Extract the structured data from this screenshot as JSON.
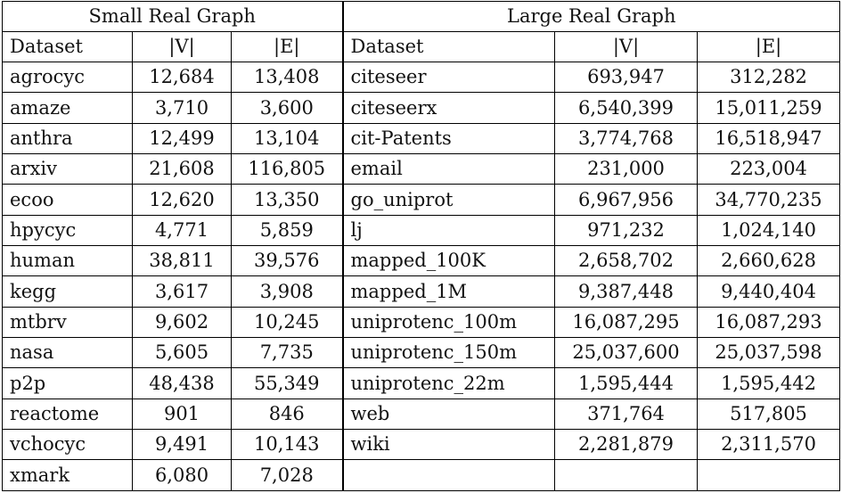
{
  "groups": {
    "small": "Small Real Graph",
    "large": "Large Real Graph"
  },
  "headers": {
    "dataset": "Dataset",
    "v": "|V|",
    "e": "|E|"
  },
  "rows": [
    {
      "s_name": "agrocyc",
      "s_v": "12,684",
      "s_e": "13,408",
      "l_name": "citeseer",
      "l_v": "693,947",
      "l_e": "312,282"
    },
    {
      "s_name": "amaze",
      "s_v": "3,710",
      "s_e": "3,600",
      "l_name": "citeseerx",
      "l_v": "6,540,399",
      "l_e": "15,011,259"
    },
    {
      "s_name": "anthra",
      "s_v": "12,499",
      "s_e": "13,104",
      "l_name": "cit-Patents",
      "l_v": "3,774,768",
      "l_e": "16,518,947"
    },
    {
      "s_name": "arxiv",
      "s_v": "21,608",
      "s_e": "116,805",
      "l_name": "email",
      "l_v": "231,000",
      "l_e": "223,004"
    },
    {
      "s_name": "ecoo",
      "s_v": "12,620",
      "s_e": "13,350",
      "l_name": "go_uniprot",
      "l_v": "6,967,956",
      "l_e": "34,770,235"
    },
    {
      "s_name": "hpycyc",
      "s_v": "4,771",
      "s_e": "5,859",
      "l_name": "lj",
      "l_v": "971,232",
      "l_e": "1,024,140"
    },
    {
      "s_name": "human",
      "s_v": "38,811",
      "s_e": "39,576",
      "l_name": "mapped_100K",
      "l_v": "2,658,702",
      "l_e": "2,660,628"
    },
    {
      "s_name": "kegg",
      "s_v": "3,617",
      "s_e": "3,908",
      "l_name": "mapped_1M",
      "l_v": "9,387,448",
      "l_e": "9,440,404"
    },
    {
      "s_name": "mtbrv",
      "s_v": "9,602",
      "s_e": "10,245",
      "l_name": "uniprotenc_100m",
      "l_v": "16,087,295",
      "l_e": "16,087,293"
    },
    {
      "s_name": "nasa",
      "s_v": "5,605",
      "s_e": "7,735",
      "l_name": "uniprotenc_150m",
      "l_v": "25,037,600",
      "l_e": "25,037,598"
    },
    {
      "s_name": "p2p",
      "s_v": "48,438",
      "s_e": "55,349",
      "l_name": "uniprotenc_22m",
      "l_v": "1,595,444",
      "l_e": "1,595,442"
    },
    {
      "s_name": "reactome",
      "s_v": "901",
      "s_e": "846",
      "l_name": "web",
      "l_v": "371,764",
      "l_e": "517,805"
    },
    {
      "s_name": "vchocyc",
      "s_v": "9,491",
      "s_e": "10,143",
      "l_name": "wiki",
      "l_v": "2,281,879",
      "l_e": "2,311,570"
    },
    {
      "s_name": "xmark",
      "s_v": "6,080",
      "s_e": "7,028",
      "l_name": "",
      "l_v": "",
      "l_e": ""
    }
  ]
}
